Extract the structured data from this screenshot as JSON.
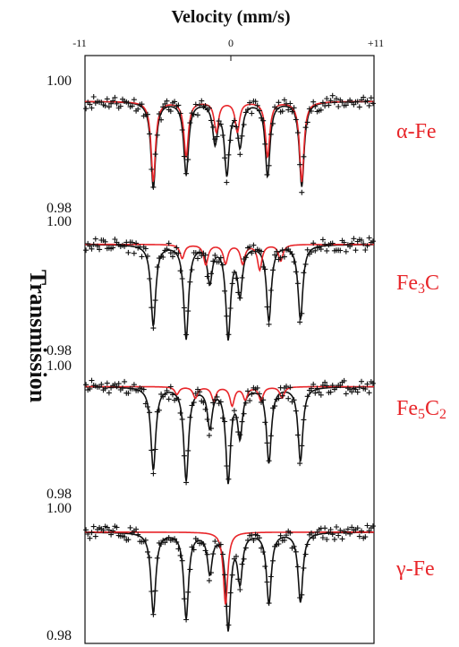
{
  "chart_data": {
    "type": "scatter",
    "title": "Velocity (mm/s)",
    "ylabel": "Transmission",
    "x_ticks": [
      "-11",
      "0",
      "+11"
    ],
    "xlim": [
      -11,
      11
    ],
    "panels": [
      {
        "component": "α-Fe",
        "component_text": "α-Fe",
        "ytick_top": "1.00",
        "ytick_bottom": "0.98",
        "ylim": [
          0.98,
          1.0
        ],
        "baseline": 0.9967,
        "fit_peaks": [
          {
            "x": -5.8,
            "depth": 0.0138
          },
          {
            "x": -3.3,
            "depth": 0.0115
          },
          {
            "x": -1.1,
            "depth": 0.0062
          },
          {
            "x": -0.2,
            "depth": 0.0112
          },
          {
            "x": 0.8,
            "depth": 0.0068
          },
          {
            "x": 2.9,
            "depth": 0.0118
          },
          {
            "x": 5.5,
            "depth": 0.0135
          }
        ],
        "component_peaks": [
          {
            "x": -5.8,
            "depth": 0.0128
          },
          {
            "x": -3.3,
            "depth": 0.0088
          },
          {
            "x": -1.0,
            "depth": 0.0048
          },
          {
            "x": 0.6,
            "depth": 0.0048
          },
          {
            "x": 2.9,
            "depth": 0.0088
          },
          {
            "x": 5.5,
            "depth": 0.0128
          }
        ]
      },
      {
        "component": "Fe3C",
        "component_text": "Fe",
        "component_sub1": "3",
        "component_text2": "C",
        "component_sub2": "",
        "ytick_top": "1.00",
        "ytick_bottom": "0.98",
        "ylim": [
          0.98,
          1.0
        ],
        "baseline": 0.9965,
        "fit_peaks": [
          {
            "x": -5.8,
            "depth": 0.0128
          },
          {
            "x": -3.3,
            "depth": 0.0148
          },
          {
            "x": -1.5,
            "depth": 0.0058
          },
          {
            "x": -0.1,
            "depth": 0.0145
          },
          {
            "x": 0.8,
            "depth": 0.0075
          },
          {
            "x": 3.0,
            "depth": 0.012
          },
          {
            "x": 5.4,
            "depth": 0.0118
          }
        ],
        "component_peaks": [
          {
            "x": -3.6,
            "depth": 0.0022
          },
          {
            "x": -1.8,
            "depth": 0.0032
          },
          {
            "x": -0.3,
            "depth": 0.003
          },
          {
            "x": 1.0,
            "depth": 0.003
          },
          {
            "x": 2.3,
            "depth": 0.004
          },
          {
            "x": 3.9,
            "depth": 0.0026
          }
        ]
      },
      {
        "component": "Fe5C2",
        "component_text": "Fe",
        "component_sub1": "5",
        "component_text2": "C",
        "component_sub2": "2",
        "ytick_top": "1.00",
        "ytick_bottom": "0.98",
        "ylim": [
          0.98,
          1.0
        ],
        "baseline": 0.9968,
        "fit_peaks": [
          {
            "x": -5.8,
            "depth": 0.0132
          },
          {
            "x": -3.3,
            "depth": 0.0148
          },
          {
            "x": -1.5,
            "depth": 0.0062
          },
          {
            "x": -0.1,
            "depth": 0.0148
          },
          {
            "x": 0.8,
            "depth": 0.0075
          },
          {
            "x": 3.0,
            "depth": 0.012
          },
          {
            "x": 5.4,
            "depth": 0.0118
          }
        ],
        "component_peaks": [
          {
            "x": -4.0,
            "depth": 0.0012
          },
          {
            "x": -2.6,
            "depth": 0.0018
          },
          {
            "x": -1.2,
            "depth": 0.0022
          },
          {
            "x": 0.2,
            "depth": 0.003
          },
          {
            "x": 1.2,
            "depth": 0.002
          },
          {
            "x": 2.4,
            "depth": 0.0022
          },
          {
            "x": 4.0,
            "depth": 0.0018
          }
        ]
      },
      {
        "component": "γ-Fe",
        "component_text": "γ-Fe",
        "ytick_top": "1.00",
        "ytick_bottom": "0.98",
        "ylim": [
          0.98,
          1.0
        ],
        "baseline": 0.9962,
        "fit_peaks": [
          {
            "x": -5.8,
            "depth": 0.0128
          },
          {
            "x": -3.3,
            "depth": 0.0135
          },
          {
            "x": -1.5,
            "depth": 0.0062
          },
          {
            "x": -0.1,
            "depth": 0.015
          },
          {
            "x": 0.8,
            "depth": 0.0075
          },
          {
            "x": 3.0,
            "depth": 0.0112
          },
          {
            "x": 5.4,
            "depth": 0.011
          }
        ],
        "component_peaks": [
          {
            "x": -0.3,
            "depth": 0.0115
          }
        ]
      }
    ]
  },
  "colors": {
    "component": "#e8262a",
    "fit": "#111111",
    "points": "#111111"
  }
}
